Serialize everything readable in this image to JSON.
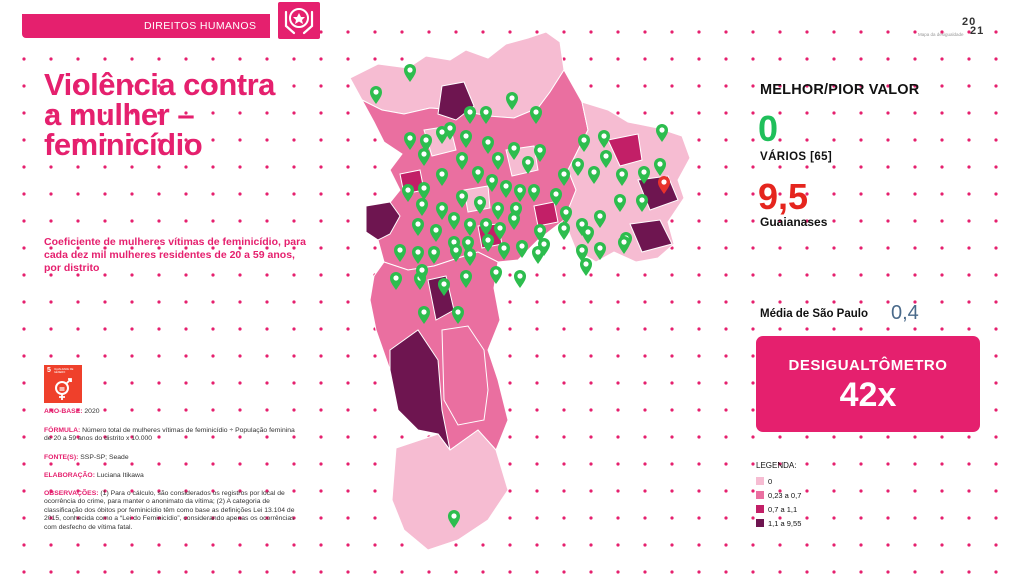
{
  "header": {
    "section_label": "DIREITOS HUMANOS",
    "section_icon": "hands-protect-icon",
    "publication_label": "Mapa da desigualdade",
    "year_top": "20",
    "year_bottom": "21"
  },
  "title": "Violência contra a mulher – feminicídio",
  "subtitle": "Coeficiente de mulheres vítimas de feminicídio, para cada dez mil mulheres residentes de 20 a 59 anos, por distrito",
  "ods": {
    "number": "5",
    "label": "IGUALDADE DE GÊNERO",
    "icon": "gender-equality-icon"
  },
  "meta": {
    "ano_label": "ANO-BASE:",
    "ano_value": "2020",
    "formula_label": "FÓRMULA:",
    "formula_value": "Número total de mulheres vítimas de feminicídio ÷ População feminina de 20 a 59 anos do distrito x 10.000",
    "fonte_label": "FONTE(S):",
    "fonte_value": "SSP-SP; Seade",
    "elab_label": "ELABORAÇÃO:",
    "elab_value": "Luciana Itikawa",
    "obs_label": "OBSERVAÇÕES:",
    "obs_value": "(1) Para o cálculo, são considerados os registros por local de ocorrência do crime, para manter o anonimato da vítima; (2) A categoria de classificação dos óbitos por feminicídio têm como base as definições  Lei 13.104 de 2015, conhecida como a “Lei do Feminicídio”, considerando apenas os ocorrências com desfecho de vítima fatal."
  },
  "summary": {
    "heading": "MELHOR/PIOR VALOR",
    "best_value": "0",
    "best_name": "VÁRIOS [65]",
    "worst_value": "9,5",
    "worst_name": "Guaianases",
    "average_label": "Média de São Paulo",
    "average_value": "0,4",
    "desig_label": "DESIGUALTÔMETRO",
    "desig_value": "42x"
  },
  "legend": {
    "title": "LEGENDA:",
    "items": [
      {
        "label": "0",
        "color": "#f6bcd2"
      },
      {
        "label": "0,23 a 0,7",
        "color": "#ea6fa0"
      },
      {
        "label": "0,7 a 1,1",
        "color": "#c21f67"
      },
      {
        "label": "1,1 a 9,55",
        "color": "#6e1550"
      }
    ]
  },
  "map": {
    "best_marker_color": "#2dbd4e",
    "worst_marker_color": "#e8322c",
    "best_marker_icon": "map-pin-icon",
    "worst_marker_icon": "map-pin-icon"
  },
  "colors": {
    "accent": "#e5206e",
    "best": "#1fbf5a",
    "worst": "#e5251e"
  }
}
